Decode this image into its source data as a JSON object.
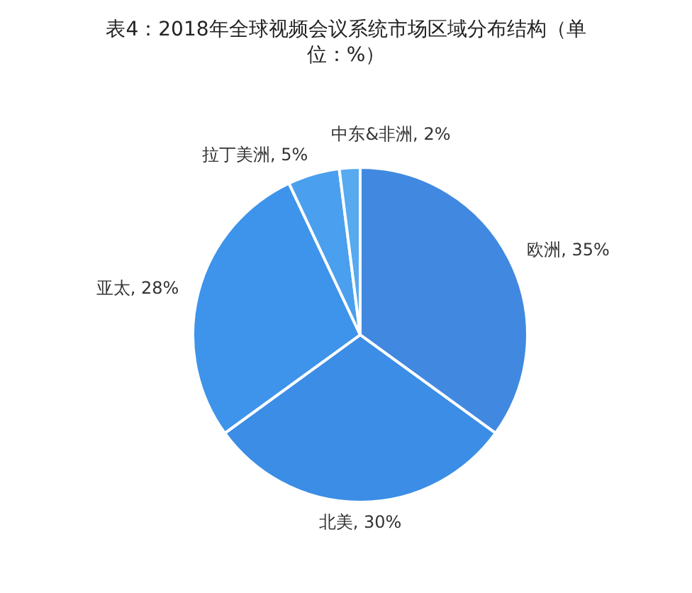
{
  "chart_data": {
    "type": "pie",
    "title": "表4：2018年全球视频会议系统市场区域分布结构（单位：%）",
    "categories": [
      "欧洲",
      "北美",
      "亚太",
      "拉丁美洲",
      "中东&非洲"
    ],
    "values": [
      35,
      30,
      28,
      5,
      2
    ],
    "value_labels": [
      "35%",
      "30%",
      "28%",
      "5%",
      "2%"
    ],
    "colors": [
      "#4189e0",
      "#3b8de6",
      "#3e93ea",
      "#4a9fee",
      "#57a9f0"
    ],
    "legend": false
  }
}
